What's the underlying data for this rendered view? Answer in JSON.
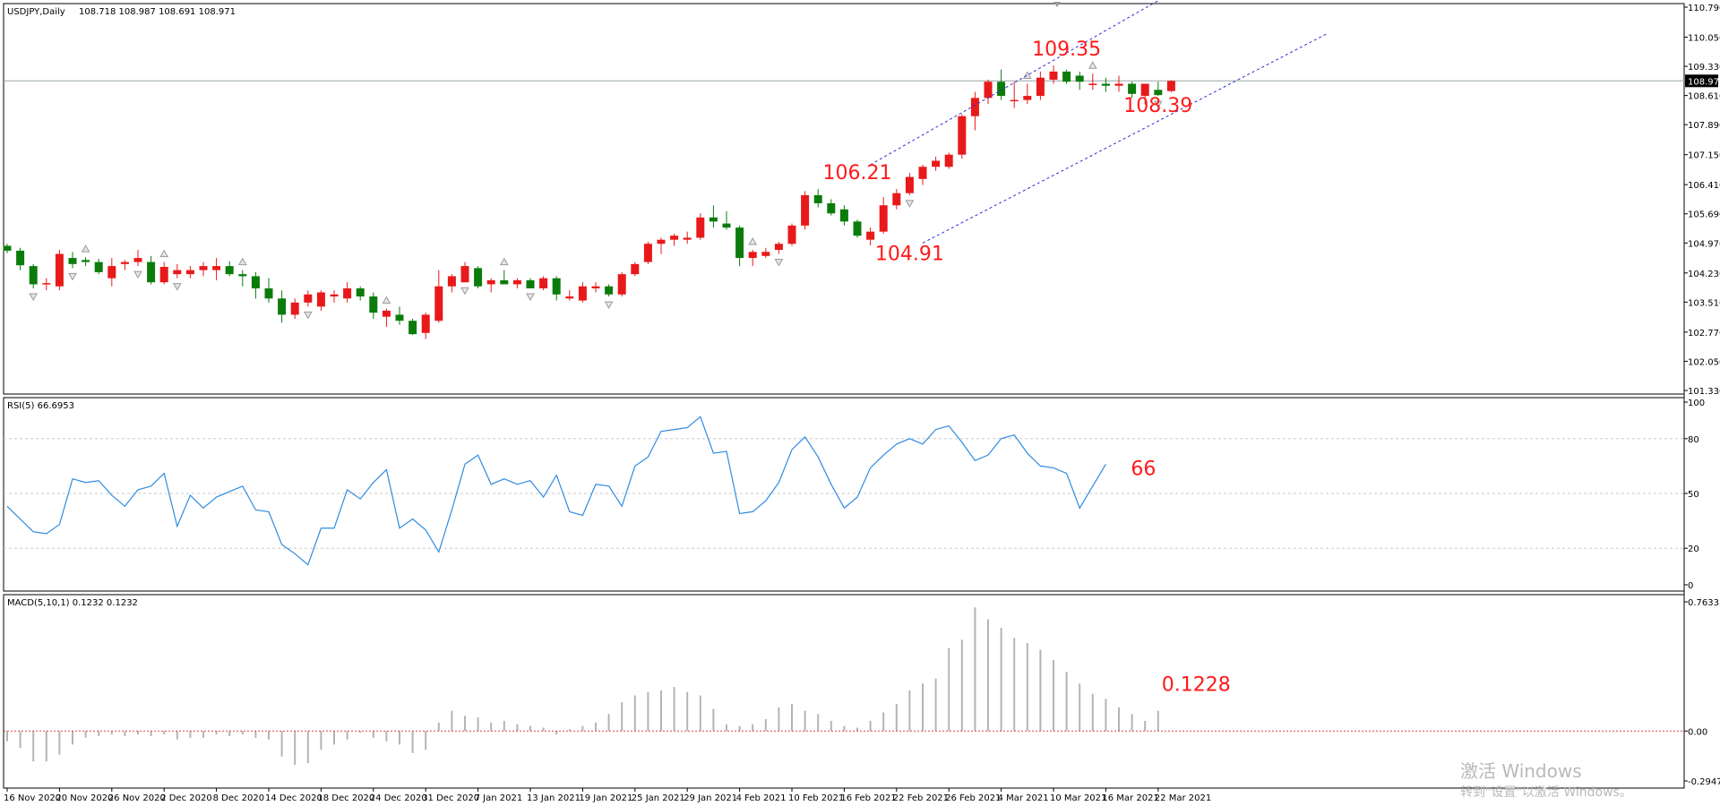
{
  "chart_data": {
    "type": "candlestick",
    "symbol_header": "USDJPY,Daily",
    "ohlc_header": "108.718 108.987 108.691 108.971",
    "current_price_label": "108.971",
    "current_price": 108.971,
    "price_ticks": [
      "110.790",
      "110.050",
      "109.330",
      "108.610",
      "107.890",
      "107.150",
      "106.410",
      "105.690",
      "104.970",
      "104.230",
      "103.510",
      "102.770",
      "102.050",
      "101.330"
    ],
    "price_range": [
      101.33,
      110.79
    ],
    "candles": [
      [
        104.9,
        104.95,
        104.72,
        104.78
      ],
      [
        104.78,
        104.85,
        104.3,
        104.42
      ],
      [
        104.4,
        104.45,
        103.85,
        103.95
      ],
      [
        103.95,
        104.1,
        103.8,
        103.98
      ],
      [
        103.9,
        104.8,
        103.8,
        104.7
      ],
      [
        104.6,
        104.75,
        104.35,
        104.45
      ],
      [
        104.55,
        104.62,
        104.4,
        104.5
      ],
      [
        104.5,
        104.58,
        104.2,
        104.25
      ],
      [
        104.1,
        104.6,
        103.9,
        104.4
      ],
      [
        104.45,
        104.55,
        104.3,
        104.5
      ],
      [
        104.5,
        104.8,
        104.4,
        104.6
      ],
      [
        104.5,
        104.65,
        103.95,
        104.0
      ],
      [
        104.0,
        104.5,
        103.95,
        104.38
      ],
      [
        104.2,
        104.45,
        104.1,
        104.3
      ],
      [
        104.2,
        104.4,
        104.1,
        104.3
      ],
      [
        104.3,
        104.5,
        104.15,
        104.4
      ],
      [
        104.3,
        104.6,
        104.05,
        104.4
      ],
      [
        104.4,
        104.52,
        104.15,
        104.2
      ],
      [
        104.2,
        104.3,
        103.9,
        104.15
      ],
      [
        104.15,
        104.25,
        103.6,
        103.85
      ],
      [
        103.85,
        104.1,
        103.5,
        103.6
      ],
      [
        103.6,
        103.8,
        103.0,
        103.2
      ],
      [
        103.2,
        103.6,
        103.1,
        103.5
      ],
      [
        103.5,
        103.8,
        103.4,
        103.7
      ],
      [
        103.4,
        103.8,
        103.3,
        103.75
      ],
      [
        103.65,
        103.8,
        103.5,
        103.7
      ],
      [
        103.6,
        104.0,
        103.5,
        103.85
      ],
      [
        103.85,
        103.9,
        103.55,
        103.65
      ],
      [
        103.65,
        103.75,
        103.1,
        103.25
      ],
      [
        103.15,
        103.35,
        102.9,
        103.3
      ],
      [
        103.2,
        103.4,
        102.95,
        103.05
      ],
      [
        103.05,
        103.1,
        102.7,
        102.72
      ],
      [
        102.75,
        103.25,
        102.6,
        103.2
      ],
      [
        103.05,
        104.3,
        103.0,
        103.9
      ],
      [
        103.9,
        104.2,
        103.75,
        104.15
      ],
      [
        104.0,
        104.5,
        104.0,
        104.4
      ],
      [
        104.35,
        104.4,
        103.85,
        103.9
      ],
      [
        103.95,
        104.1,
        103.75,
        104.05
      ],
      [
        104.05,
        104.3,
        103.95,
        103.95
      ],
      [
        103.95,
        104.1,
        103.85,
        104.05
      ],
      [
        104.05,
        104.1,
        103.85,
        103.85
      ],
      [
        103.85,
        104.15,
        103.8,
        104.1
      ],
      [
        104.1,
        104.15,
        103.55,
        103.7
      ],
      [
        103.6,
        103.8,
        103.55,
        103.65
      ],
      [
        103.55,
        104.0,
        103.5,
        103.9
      ],
      [
        103.85,
        104.0,
        103.75,
        103.9
      ],
      [
        103.9,
        103.95,
        103.65,
        103.7
      ],
      [
        103.7,
        104.25,
        103.65,
        104.2
      ],
      [
        104.2,
        104.5,
        104.15,
        104.45
      ],
      [
        104.5,
        105.0,
        104.45,
        104.95
      ],
      [
        104.95,
        105.1,
        104.7,
        105.05
      ],
      [
        105.05,
        105.2,
        104.9,
        105.15
      ],
      [
        105.05,
        105.25,
        104.95,
        105.1
      ],
      [
        105.1,
        105.7,
        105.05,
        105.6
      ],
      [
        105.6,
        105.9,
        105.35,
        105.5
      ],
      [
        105.45,
        105.75,
        105.3,
        105.35
      ],
      [
        105.35,
        105.4,
        104.4,
        104.6
      ],
      [
        104.6,
        104.8,
        104.4,
        104.75
      ],
      [
        104.65,
        104.85,
        104.6,
        104.75
      ],
      [
        104.8,
        105.0,
        104.7,
        104.95
      ],
      [
        104.95,
        105.45,
        104.9,
        105.4
      ],
      [
        105.4,
        106.25,
        105.3,
        106.15
      ],
      [
        106.15,
        106.3,
        105.85,
        105.95
      ],
      [
        105.95,
        106.05,
        105.65,
        105.7
      ],
      [
        105.8,
        105.9,
        105.4,
        105.5
      ],
      [
        105.5,
        105.55,
        105.1,
        105.15
      ],
      [
        105.05,
        105.35,
        104.91,
        105.25
      ],
      [
        105.25,
        106.1,
        105.2,
        105.9
      ],
      [
        105.9,
        106.3,
        105.8,
        106.2
      ],
      [
        106.2,
        106.7,
        106.15,
        106.6
      ],
      [
        106.55,
        106.9,
        106.4,
        106.85
      ],
      [
        106.85,
        107.1,
        106.75,
        107.0
      ],
      [
        106.85,
        107.2,
        106.8,
        107.15
      ],
      [
        107.15,
        108.15,
        107.05,
        108.1
      ],
      [
        108.1,
        108.7,
        107.75,
        108.55
      ],
      [
        108.55,
        109.0,
        108.4,
        108.95
      ],
      [
        108.95,
        109.25,
        108.5,
        108.6
      ],
      [
        108.5,
        108.95,
        108.3,
        108.5
      ],
      [
        108.5,
        108.9,
        108.4,
        108.6
      ],
      [
        108.6,
        109.2,
        108.5,
        109.05
      ],
      [
        109.0,
        109.35,
        108.9,
        109.2
      ],
      [
        109.2,
        109.25,
        108.9,
        108.95
      ],
      [
        109.1,
        109.2,
        108.75,
        108.95
      ],
      [
        108.9,
        109.15,
        108.75,
        108.9
      ],
      [
        108.9,
        109.05,
        108.7,
        108.85
      ],
      [
        108.85,
        109.1,
        108.7,
        108.9
      ],
      [
        108.9,
        108.95,
        108.55,
        108.65
      ],
      [
        108.6,
        108.9,
        108.39,
        108.9
      ],
      [
        108.75,
        108.95,
        108.6,
        108.62
      ],
      [
        108.72,
        108.99,
        108.69,
        108.97
      ]
    ],
    "up_color": "#e8191a",
    "down_color": "#0b7c0b",
    "date_labels": [
      {
        "i": 0,
        "label": "16 Nov 2020"
      },
      {
        "i": 4,
        "label": "20 Nov 2020"
      },
      {
        "i": 8,
        "label": "26 Nov 2020"
      },
      {
        "i": 12,
        "label": "2 Dec 2020"
      },
      {
        "i": 16,
        "label": "8 Dec 2020"
      },
      {
        "i": 20,
        "label": "14 Dec 2020"
      },
      {
        "i": 24,
        "label": "18 Dec 2020"
      },
      {
        "i": 28,
        "label": "24 Dec 2020"
      },
      {
        "i": 32,
        "label": "31 Dec 2020"
      },
      {
        "i": 36,
        "label": "7 Jan 2021"
      },
      {
        "i": 40,
        "label": "13 Jan 2021"
      },
      {
        "i": 44,
        "label": "19 Jan 2021"
      },
      {
        "i": 48,
        "label": "25 Jan 2021"
      },
      {
        "i": 52,
        "label": "29 Jan 2021"
      },
      {
        "i": 56,
        "label": "4 Feb 2021"
      },
      {
        "i": 60,
        "label": "10 Feb 2021"
      },
      {
        "i": 64,
        "label": "16 Feb 2021"
      },
      {
        "i": 68,
        "label": "22 Feb 2021"
      },
      {
        "i": 72,
        "label": "26 Feb 2021"
      },
      {
        "i": 76,
        "label": "4 Mar 2021"
      },
      {
        "i": 80,
        "label": "10 Mar 2021"
      },
      {
        "i": 84,
        "label": "16 Mar 2021"
      },
      {
        "i": 88,
        "label": "22 Mar 2021"
      }
    ],
    "fractals_up": [
      6,
      12,
      18,
      29,
      38,
      57,
      78,
      83
    ],
    "fractals_down": [
      2,
      5,
      10,
      13,
      23,
      35,
      40,
      46,
      59,
      69,
      88
    ],
    "channel": {
      "upper": {
        "from": [
          66,
          106.9
        ],
        "to": [
          88,
          110.95
        ]
      },
      "lower": {
        "from": [
          70,
          104.97
        ],
        "to": [
          101,
          110.15
        ]
      },
      "color": "#2b2bd6"
    },
    "annotations": [
      {
        "text": "109.35",
        "i": 81,
        "price": 109.6
      },
      {
        "text": "108.39",
        "i": 88,
        "price": 108.2
      },
      {
        "text": "106.21",
        "i": 65,
        "price": 106.55
      },
      {
        "text": "104.91",
        "i": 69,
        "price": 104.55
      }
    ],
    "rsi": {
      "header": "RSI(5) 66.6953",
      "ticks": [
        "100",
        "80",
        "50",
        "20",
        "0"
      ],
      "levels": [
        80,
        50,
        20
      ],
      "range": [
        0,
        100
      ],
      "values": [
        43,
        36,
        29,
        28,
        33,
        58,
        56,
        57,
        49,
        43,
        52,
        54,
        61,
        32,
        49,
        42,
        48,
        51,
        54,
        41,
        40,
        22,
        17,
        11,
        31,
        31,
        52,
        47,
        56,
        63,
        31,
        36,
        30,
        18,
        41,
        66,
        71,
        55,
        58,
        55,
        57,
        48,
        60,
        40,
        38,
        55,
        54,
        43,
        65,
        70,
        84,
        85,
        86,
        92,
        72,
        73,
        39,
        40,
        46,
        56,
        74,
        81,
        70,
        55,
        42,
        48,
        64,
        71,
        77,
        80,
        77,
        85,
        87,
        78,
        68,
        71,
        80,
        82,
        72,
        65,
        64,
        61,
        42,
        54,
        66
      ],
      "color": "#2f8be0",
      "annotation": "66",
      "annotation_value": 63
    },
    "macd": {
      "header": "MACD(5,10,1) 0.1232 0.1232",
      "ticks": [
        "0.7633",
        "0.00",
        "-0.2947"
      ],
      "range": [
        -0.2947,
        0.7633
      ],
      "values": [
        -0.06,
        -0.1,
        -0.18,
        -0.18,
        -0.14,
        -0.08,
        -0.04,
        -0.03,
        -0.02,
        -0.03,
        -0.02,
        -0.03,
        -0.02,
        -0.05,
        -0.04,
        -0.04,
        -0.02,
        -0.03,
        -0.02,
        -0.04,
        -0.05,
        -0.15,
        -0.2,
        -0.19,
        -0.11,
        -0.08,
        -0.05,
        -0.01,
        -0.04,
        -0.06,
        -0.08,
        -0.13,
        -0.11,
        0.05,
        0.12,
        0.09,
        0.08,
        0.05,
        0.06,
        0.04,
        0.03,
        0.02,
        -0.02,
        0.01,
        0.03,
        0.05,
        0.1,
        0.17,
        0.21,
        0.23,
        0.24,
        0.26,
        0.23,
        0.21,
        0.13,
        0.04,
        0.03,
        0.04,
        0.07,
        0.14,
        0.16,
        0.12,
        0.1,
        0.06,
        0.03,
        0.02,
        0.06,
        0.11,
        0.16,
        0.24,
        0.28,
        0.31,
        0.49,
        0.54,
        0.73,
        0.66,
        0.61,
        0.55,
        0.52,
        0.48,
        0.42,
        0.35,
        0.28,
        0.22,
        0.19,
        0.14,
        0.1,
        0.06,
        0.12
      ],
      "zero_line_color": "#e04040",
      "bar_color": "#b4b4b4",
      "annotation": "0.1228"
    },
    "watermark": {
      "line1": "激活 Windows",
      "line2": "转到\"设置\"以激活 Windows。"
    }
  }
}
